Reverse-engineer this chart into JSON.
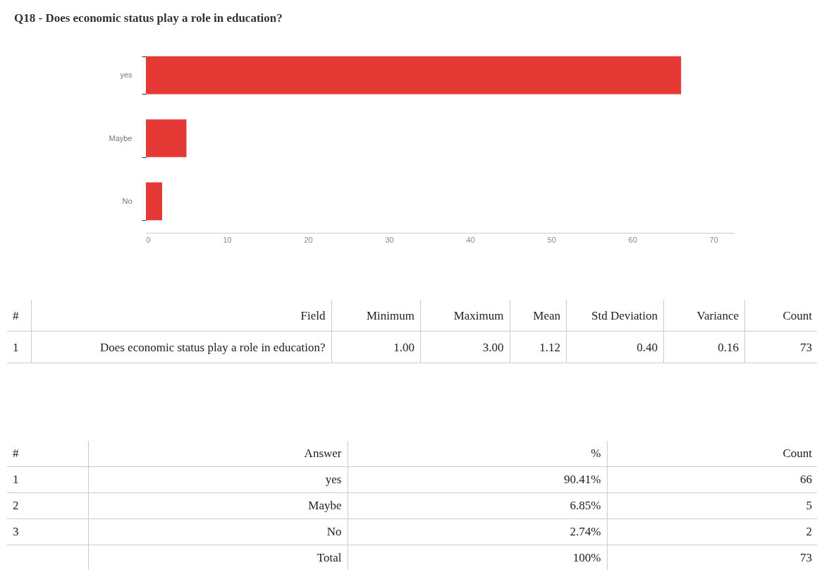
{
  "chart_data": {
    "type": "bar",
    "orientation": "horizontal",
    "title": "Q18 - Does economic status play a role in education?",
    "categories": [
      "yes",
      "Maybe",
      "No"
    ],
    "values": [
      66,
      5,
      2
    ],
    "color": "#e53935",
    "xlim": [
      0,
      72.5
    ],
    "xticks": [
      0,
      10,
      20,
      30,
      40,
      50,
      60,
      70
    ],
    "grid": false,
    "annotations": [
      "#",
      "Field",
      "Minimum",
      "Maximum",
      "Mean",
      "Std Deviation",
      "Variance",
      "Count",
      "1",
      "Does economic status play a role in education?",
      "1.00",
      "3.00",
      "1.12",
      "0.40",
      "0.16",
      "73",
      "#",
      "Answer",
      "%",
      "Count",
      "1",
      "90.41%",
      "66",
      "2",
      "6.85%",
      "5",
      "3",
      "2.74%",
      "2",
      "Total",
      "100%",
      "73"
    ]
  }
}
